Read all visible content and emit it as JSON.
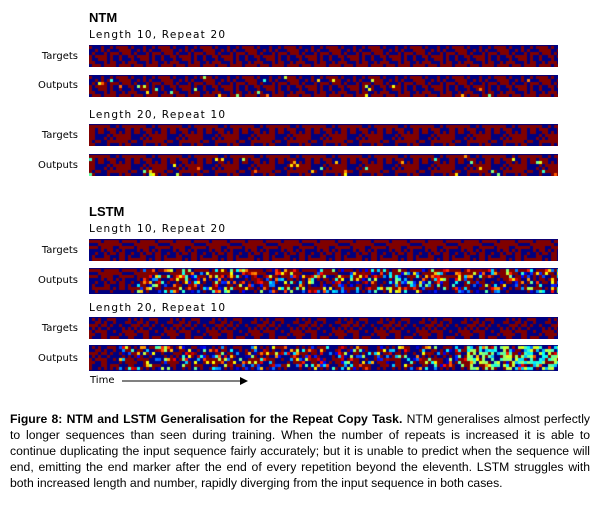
{
  "ntm": {
    "title": "NTM",
    "cond1": "Length 10, Repeat 20",
    "cond2": "Length 20, Repeat 10"
  },
  "lstm": {
    "title": "LSTM",
    "cond1": "Length 10, Repeat 20",
    "cond2": "Length 20, Repeat 10"
  },
  "row_labels": {
    "targets": "Targets",
    "outputs": "Outputs"
  },
  "time_label": "Time",
  "caption": {
    "label": "Figure 8:",
    "bold_title": "NTM and LSTM Generalisation for the Repeat Copy Task.",
    "body": "NTM generalises almost perfectly to longer sequences than seen during training. When the number of repeats is increased it is able to continue duplicating the input sequence fairly accurately; but it is unable to predict when the sequence will end, emitting the end marker after the end of every repetition beyond the eleventh. LSTM struggles with both increased length and number, rapidly diverging from the input sequence in both cases."
  },
  "colors": {
    "low": "#00007f",
    "high": "#800000",
    "colormap": "jet"
  }
}
